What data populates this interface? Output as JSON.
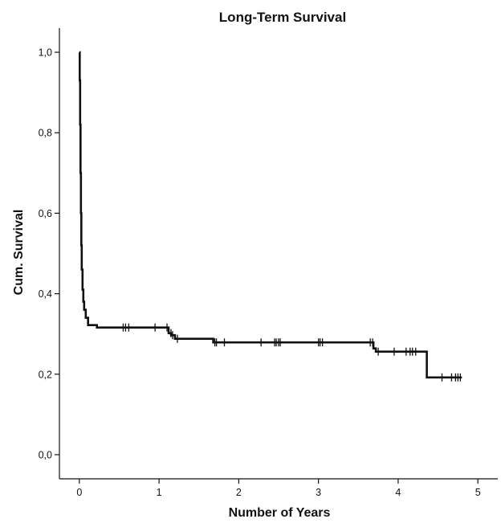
{
  "chart_data": {
    "type": "line",
    "title": "Long-Term Survival",
    "xlabel": "Number of Years",
    "ylabel": "Cum. Survival",
    "xlim": [
      -0.25,
      5.25
    ],
    "ylim": [
      -0.06,
      1.06
    ],
    "x_ticks": [
      0,
      1,
      2,
      3,
      4,
      5
    ],
    "y_ticks": [
      0.0,
      0.2,
      0.4,
      0.6,
      0.8,
      1.0
    ],
    "x_tick_labels": [
      "0",
      "1",
      "2",
      "3",
      "4",
      "5"
    ],
    "y_tick_labels": [
      "0,0",
      "0,2",
      "0,4",
      "0,6",
      "0,8",
      "1,0"
    ],
    "grid": false,
    "legend": "none",
    "series": [
      {
        "steps": [
          [
            0.0,
            1.0
          ],
          [
            0.005,
            0.93
          ],
          [
            0.01,
            0.82
          ],
          [
            0.015,
            0.7
          ],
          [
            0.02,
            0.6
          ],
          [
            0.025,
            0.52
          ],
          [
            0.03,
            0.46
          ],
          [
            0.04,
            0.41
          ],
          [
            0.05,
            0.38
          ],
          [
            0.06,
            0.36
          ],
          [
            0.08,
            0.34
          ],
          [
            0.11,
            0.322
          ],
          [
            0.22,
            0.316
          ],
          [
            1.12,
            0.302
          ],
          [
            1.15,
            0.297
          ],
          [
            1.2,
            0.288
          ],
          [
            1.68,
            0.279
          ],
          [
            3.69,
            0.264
          ],
          [
            3.72,
            0.256
          ],
          [
            4.36,
            0.192
          ],
          [
            4.8,
            0.192
          ]
        ],
        "censored": [
          [
            0.55,
            0.316
          ],
          [
            0.58,
            0.316
          ],
          [
            0.62,
            0.316
          ],
          [
            0.95,
            0.316
          ],
          [
            1.1,
            0.316
          ],
          [
            1.15,
            0.302
          ],
          [
            1.17,
            0.297
          ],
          [
            1.23,
            0.288
          ],
          [
            1.7,
            0.279
          ],
          [
            1.72,
            0.279
          ],
          [
            1.82,
            0.279
          ],
          [
            2.28,
            0.279
          ],
          [
            2.45,
            0.279
          ],
          [
            2.47,
            0.279
          ],
          [
            2.5,
            0.279
          ],
          [
            2.52,
            0.279
          ],
          [
            3.0,
            0.279
          ],
          [
            3.02,
            0.279
          ],
          [
            3.05,
            0.279
          ],
          [
            3.65,
            0.279
          ],
          [
            3.68,
            0.279
          ],
          [
            3.75,
            0.256
          ],
          [
            3.95,
            0.256
          ],
          [
            4.1,
            0.256
          ],
          [
            4.15,
            0.256
          ],
          [
            4.18,
            0.256
          ],
          [
            4.22,
            0.256
          ],
          [
            4.55,
            0.192
          ],
          [
            4.67,
            0.192
          ],
          [
            4.72,
            0.192
          ],
          [
            4.75,
            0.192
          ],
          [
            4.78,
            0.192
          ]
        ]
      }
    ]
  }
}
